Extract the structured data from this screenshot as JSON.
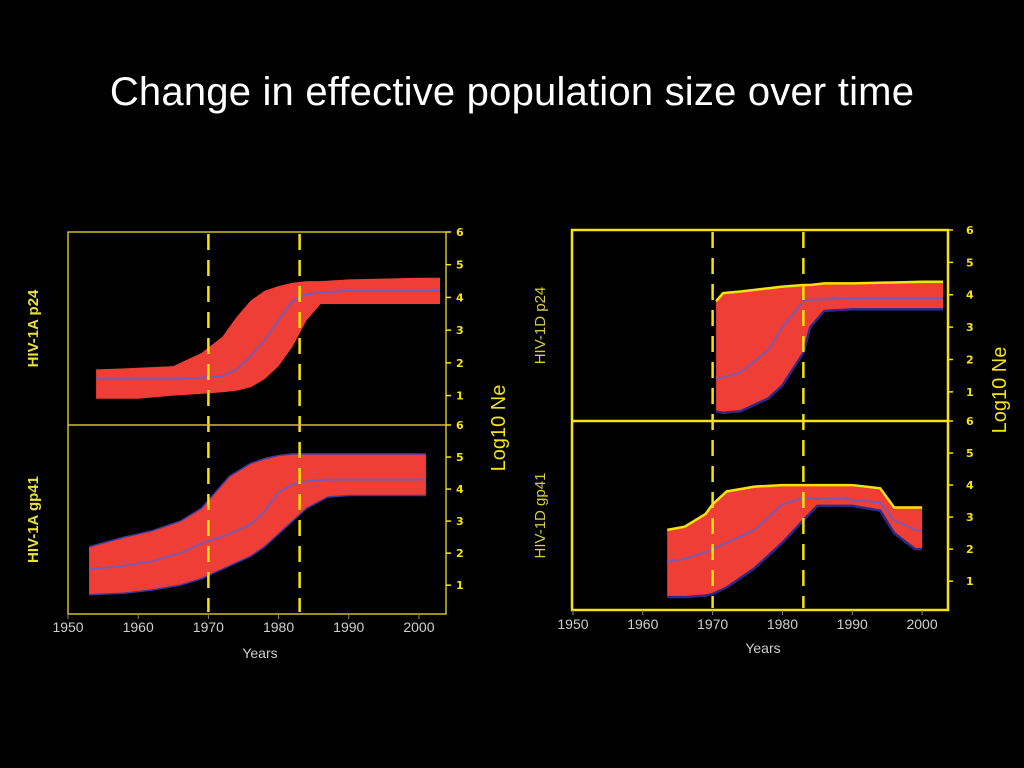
{
  "slide": {
    "title": "Change in effective population size over time"
  },
  "colors": {
    "band": "#ef3e36",
    "median": "#7b5bb0",
    "border_left": "#ffd700",
    "border_right": "#f5e30a",
    "dashed": "#f5e30a",
    "ylabel_left": "#e8e13a",
    "ylabel_right": "#d6cf3c",
    "text": "#cfcfcf"
  },
  "chart_data": [
    {
      "type": "area",
      "panel": "left",
      "row_labels": [
        "HIV-1A p24",
        "HIV-1A gp41"
      ],
      "xlabel": "Years",
      "ylabel": "Log10 Ne",
      "x_ticks": [
        1950,
        1960,
        1970,
        1980,
        1990,
        2000
      ],
      "xlim": [
        1949,
        2004
      ],
      "y_ticks_top": [
        1,
        2,
        3,
        4,
        5,
        6
      ],
      "y_ticks_bottom": [
        1,
        2,
        3,
        4,
        5,
        6
      ],
      "ylim": [
        0.1,
        6.0
      ],
      "dashed_lines_x": [
        1970,
        1983
      ],
      "series": [
        {
          "name": "HIV-1A p24",
          "x": [
            1954,
            1960,
            1965,
            1969,
            1972,
            1974,
            1976,
            1978,
            1980,
            1982,
            1984,
            1986,
            1990,
            2000,
            2003
          ],
          "upper": [
            1.8,
            1.85,
            1.9,
            2.3,
            2.8,
            3.4,
            3.9,
            4.2,
            4.35,
            4.45,
            4.5,
            4.5,
            4.55,
            4.6,
            4.6
          ],
          "median": [
            1.5,
            1.5,
            1.5,
            1.55,
            1.6,
            1.8,
            2.2,
            2.7,
            3.3,
            3.9,
            4.1,
            4.15,
            4.2,
            4.2,
            4.2
          ],
          "lower": [
            0.9,
            0.9,
            1.0,
            1.05,
            1.1,
            1.15,
            1.25,
            1.5,
            1.9,
            2.5,
            3.3,
            3.8,
            3.8,
            3.8,
            3.8
          ]
        },
        {
          "name": "HIV-1A gp41",
          "x": [
            1953,
            1958,
            1962,
            1966,
            1969,
            1971,
            1973,
            1976,
            1978,
            1980,
            1982,
            1984,
            1987,
            1990,
            2000,
            2001
          ],
          "upper": [
            2.2,
            2.5,
            2.7,
            3.0,
            3.4,
            3.9,
            4.4,
            4.8,
            4.95,
            5.05,
            5.1,
            5.1,
            5.1,
            5.1,
            5.1,
            5.1
          ],
          "median": [
            1.5,
            1.6,
            1.75,
            2.0,
            2.3,
            2.45,
            2.6,
            2.9,
            3.3,
            3.9,
            4.15,
            4.25,
            4.3,
            4.3,
            4.3,
            4.3
          ],
          "lower": [
            0.7,
            0.75,
            0.85,
            1.0,
            1.2,
            1.4,
            1.6,
            1.9,
            2.2,
            2.6,
            3.0,
            3.4,
            3.75,
            3.8,
            3.8,
            3.8
          ]
        }
      ]
    },
    {
      "type": "area",
      "panel": "right",
      "row_labels": [
        "HIV-1D p24",
        "HIV-1D gp41"
      ],
      "xlabel": "Years",
      "ylabel": "Log10 Ne",
      "x_ticks": [
        1950,
        1960,
        1970,
        1980,
        1990,
        2000
      ],
      "xlim": [
        1949,
        2004
      ],
      "y_ticks_top": [
        1,
        2,
        3,
        4,
        5,
        6
      ],
      "y_ticks_bottom": [
        1,
        2,
        3,
        4,
        5,
        6
      ],
      "ylim": [
        0.1,
        6.0
      ],
      "dashed_lines_x": [
        1970,
        1983
      ],
      "series": [
        {
          "name": "HIV-1D p24",
          "x": [
            1970.5,
            1971.5,
            1974,
            1978,
            1980,
            1983,
            1984,
            1986,
            1990,
            2000,
            2003
          ],
          "upper": [
            3.8,
            4.05,
            4.1,
            4.2,
            4.25,
            4.3,
            4.3,
            4.35,
            4.35,
            4.4,
            4.4
          ],
          "median": [
            1.4,
            1.45,
            1.6,
            2.3,
            3.0,
            3.8,
            3.85,
            3.85,
            3.9,
            3.9,
            3.9
          ],
          "lower": [
            0.4,
            0.35,
            0.4,
            0.8,
            1.2,
            2.2,
            3.0,
            3.5,
            3.55,
            3.55,
            3.55
          ]
        },
        {
          "name": "HIV-1D gp41",
          "x": [
            1963.5,
            1966,
            1969,
            1970,
            1972,
            1976,
            1980,
            1983,
            1985,
            1990,
            1994,
            1996,
            1999,
            2000
          ],
          "upper": [
            2.6,
            2.7,
            3.1,
            3.4,
            3.8,
            3.95,
            4.0,
            4.0,
            4.0,
            4.0,
            3.9,
            3.3,
            3.3,
            3.3
          ],
          "median": [
            1.6,
            1.7,
            1.9,
            2.0,
            2.2,
            2.6,
            3.4,
            3.6,
            3.6,
            3.55,
            3.45,
            2.9,
            2.6,
            2.6
          ],
          "lower": [
            0.5,
            0.5,
            0.55,
            0.6,
            0.8,
            1.4,
            2.2,
            2.9,
            3.35,
            3.35,
            3.2,
            2.5,
            2.0,
            2.0
          ]
        }
      ]
    }
  ]
}
